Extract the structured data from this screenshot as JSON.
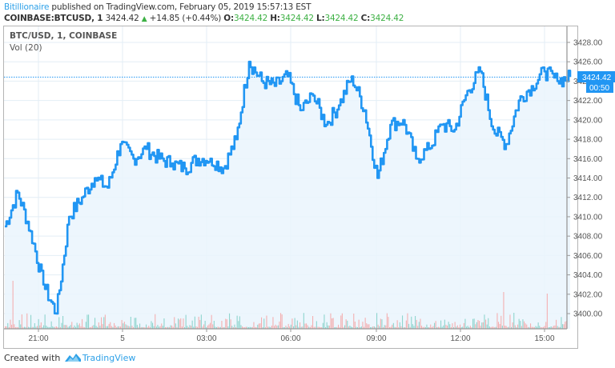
{
  "header": {
    "author": "Bitillionaire",
    "published_text": " published on TradingView.com, February 05, 2019 15:57:13 EST",
    "symbol": "COINBASE:BTCUSD, 1",
    "last_price": "3424.42",
    "change": "+14.85 (+0.44%)",
    "open_label": "O:",
    "open": "3424.42",
    "high_label": "H:",
    "high": "3424.42",
    "low_label": "L:",
    "low": "3424.42",
    "close_label": "C:",
    "close": "3424.42"
  },
  "legend": {
    "title": "BTC/USD, 1, COINBASE",
    "volume": "Vol (20)"
  },
  "price_tag": {
    "value": "3424.42",
    "countdown": "00:50"
  },
  "footer": {
    "created_with": "Created with",
    "brand": "TradingView"
  },
  "colors": {
    "line": "#2196f3",
    "area_fill": "#eaf4fd",
    "vol_up": "#7fcfc6",
    "vol_down": "#f4a3a3",
    "green": "#3cb043",
    "brand": "#2ea1e8",
    "grid": "#e3eef5"
  },
  "chart_data": {
    "type": "line",
    "title": "BTC/USD, 1, COINBASE",
    "subtitle": "COINBASE:BTCUSD, 1 — 3424.42 +14.85 (+0.44%)",
    "xlabel": "",
    "ylabel": "",
    "x_ticks": [
      "21:00",
      "5",
      "03:00",
      "06:00",
      "09:00",
      "12:00",
      "15:00"
    ],
    "y_ticks": [
      "3400.00",
      "3402.00",
      "3404.00",
      "3406.00",
      "3408.00",
      "3410.00",
      "3412.00",
      "3414.00",
      "3416.00",
      "3418.00",
      "3420.00",
      "3422.00",
      "3424.00",
      "3426.00",
      "3428.00"
    ],
    "ylim": [
      3398.5,
      3429.5
    ],
    "grid": true,
    "legend": [
      "BTC/USD, 1, COINBASE",
      "Vol (20)"
    ],
    "last_value_label": "3424.42",
    "x": [
      "19:45",
      "20:05",
      "20:25",
      "20:45",
      "21:00",
      "21:15",
      "21:40",
      "22:20",
      "23:00",
      "23:40",
      "0:00",
      "0:40",
      "1:20",
      "2:00",
      "2:40",
      "3:00",
      "3:40",
      "4:20",
      "4:45",
      "5:00",
      "5:20",
      "5:40",
      "6:00",
      "6:40",
      "7:20",
      "8:00",
      "8:40",
      "9:00",
      "9:40",
      "10:00",
      "10:20",
      "10:40",
      "11:20",
      "11:40",
      "12:00",
      "12:40",
      "13:00",
      "13:20",
      "13:40",
      "14:00",
      "14:20",
      "14:40",
      "15:00",
      "15:20",
      "15:45"
    ],
    "series": [
      {
        "name": "BTCUSD close",
        "values": [
          3409.0,
          3412.5,
          3408.5,
          3403.0,
          3400.0,
          3410.0,
          3412.0,
          3414.0,
          3413.0,
          3417.5,
          3416.0,
          3417.0,
          3416.0,
          3415.5,
          3415.0,
          3416.0,
          3416.0,
          3415.0,
          3418.0,
          3426.0,
          3424.0,
          3423.5,
          3424.5,
          3421.0,
          3422.5,
          3419.5,
          3421.5,
          3424.5,
          3421.0,
          3414.0,
          3419.5,
          3420.0,
          3416.0,
          3417.0,
          3419.5,
          3419.0,
          3423.0,
          3425.0,
          3419.0,
          3417.5,
          3422.0,
          3423.5,
          3425.0,
          3424.0,
          3424.42
        ]
      }
    ]
  }
}
